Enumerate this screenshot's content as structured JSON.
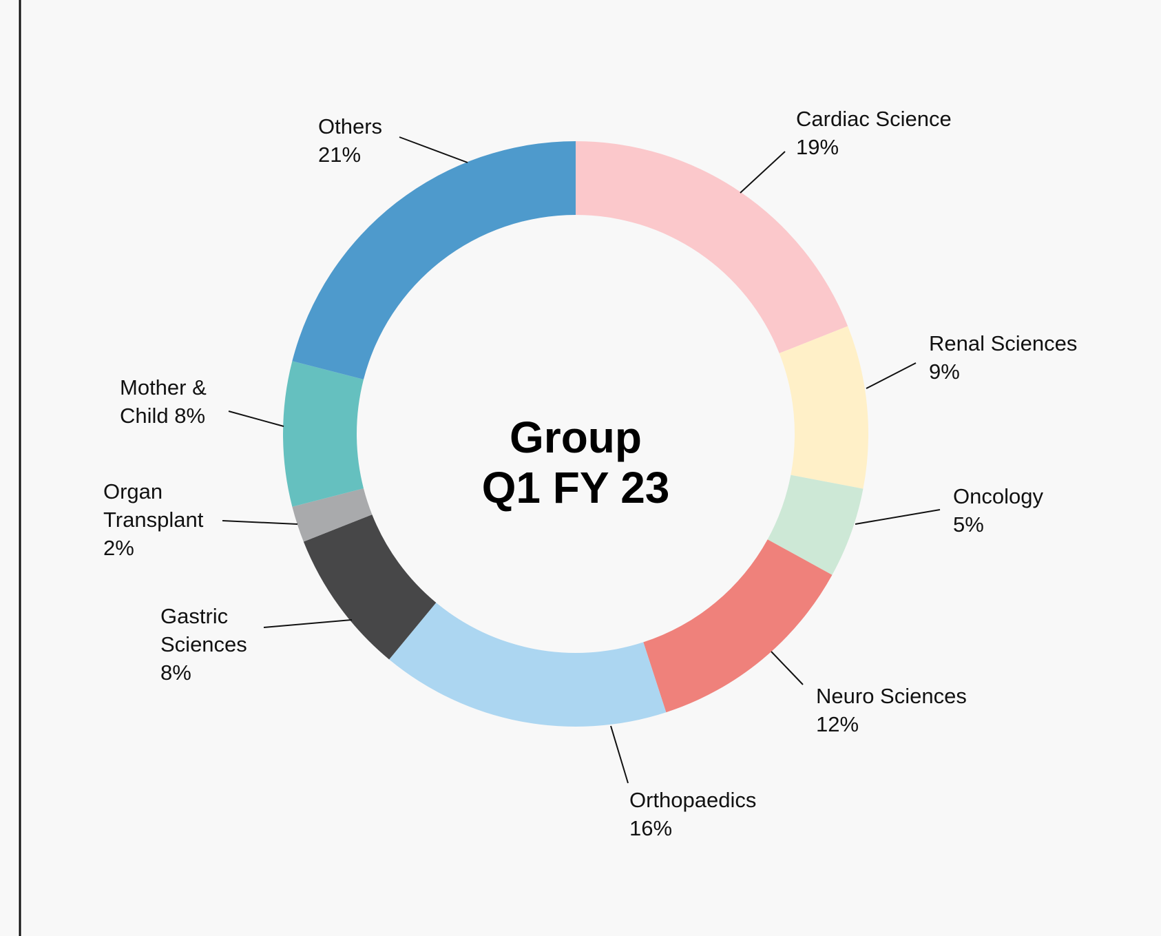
{
  "chart_data": {
    "type": "donut",
    "title": [
      "Group",
      "Q1 FY 23"
    ],
    "categories": [
      "Cardiac Science",
      "Renal Sciences",
      "Oncology",
      "Neuro Sciences",
      "Orthopaedics",
      "Gastric Sciences",
      "Organ Transplant",
      "Mother & Child",
      "Others"
    ],
    "values": [
      19,
      9,
      5,
      12,
      16,
      8,
      2,
      8,
      21
    ],
    "value_labels": [
      "19%",
      "9%",
      "5%",
      "12%",
      "16%",
      "8%",
      "2%",
      "8%",
      "21%"
    ],
    "colors": [
      "#fbc8cb",
      "#fff0c8",
      "#cde8d6",
      "#ef817b",
      "#acd6f1",
      "#474748",
      "#a9aaac",
      "#65c0bf",
      "#4e9acc"
    ]
  }
}
